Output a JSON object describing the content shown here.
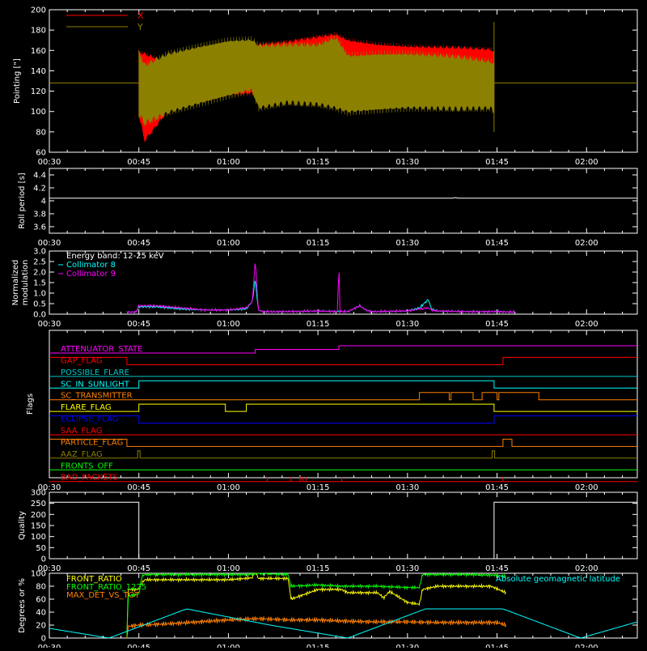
{
  "time_axis": {
    "ticks": [
      "00:30",
      "00:45",
      "01:00",
      "01:15",
      "01:30",
      "01:45",
      "02:00"
    ],
    "tick_minutes": [
      30,
      45,
      60,
      75,
      90,
      105,
      120
    ],
    "range_minutes": [
      30,
      128.5
    ]
  },
  "colors": {
    "background": "#000000",
    "axes": "#ffffff",
    "red": "#ff0000",
    "olive": "#8c8000",
    "cyan": "#00ffff",
    "magenta": "#ff00ff",
    "yellow": "#ffff00",
    "green": "#00ff00",
    "orange": "#ff8000",
    "blue": "#0000ff",
    "white": "#ffffff"
  },
  "chart_data": [
    {
      "id": "pointing",
      "type": "line",
      "ylabel": "Pointing [\"]",
      "ylim": [
        60,
        200
      ],
      "yticks": [
        60,
        80,
        100,
        120,
        140,
        160,
        180,
        200
      ],
      "legend": [
        {
          "name": "X",
          "color": "#ff0000"
        },
        {
          "name": "Y",
          "color": "#8c8000"
        }
      ],
      "baseline": 128,
      "x_envelope": {
        "x": [
          45,
          46,
          50,
          55,
          60,
          64,
          65,
          70,
          75,
          78,
          80,
          85,
          90,
          95,
          100,
          104,
          104.5
        ],
        "upper": [
          160,
          158,
          150,
          157,
          163,
          166,
          168,
          170,
          175,
          178,
          172,
          168,
          166,
          165,
          164,
          163,
          160
        ],
        "lower": [
          95,
          70,
          100,
          108,
          114,
          116,
          114,
          108,
          106,
          108,
          112,
          110,
          108,
          106,
          104,
          104,
          102
        ]
      },
      "y_envelope": {
        "x": [
          45,
          46,
          50,
          55,
          60,
          64,
          65,
          70,
          75,
          78,
          80,
          85,
          90,
          95,
          100,
          104,
          104.5
        ],
        "upper": [
          160,
          148,
          160,
          167,
          173,
          174,
          168,
          168,
          168,
          176,
          158,
          160,
          160,
          158,
          155,
          152,
          150
        ],
        "lower": [
          95,
          86,
          96,
          104,
          112,
          118,
          100,
          106,
          104,
          100,
          96,
          98,
          100,
          100,
          100,
          100,
          96
        ]
      }
    },
    {
      "id": "roll",
      "type": "line",
      "ylabel": "Roll period [s]",
      "ylim": [
        3.5,
        4.5
      ],
      "yticks": [
        3.6,
        3.8,
        4.0,
        4.2,
        4.4
      ],
      "series": [
        {
          "color": "#ffffff",
          "x": [
            30,
            97.5,
            98,
            98.5,
            128.5
          ],
          "y": [
            4.04,
            4.04,
            4.05,
            4.04,
            4.04
          ]
        }
      ]
    },
    {
      "id": "modulation",
      "type": "line",
      "ylabel_lines": [
        "Normalized",
        "modulation"
      ],
      "ylim": [
        0,
        3
      ],
      "yticks": [
        "0.0",
        "0.5",
        "1.0",
        "1.5",
        "2.0",
        "2.5",
        "3.0"
      ],
      "legend": [
        {
          "name": "Energy band: 12-25 keV",
          "color": "#ffffff"
        },
        {
          "name": "Collimator 8",
          "color": "#00ffff"
        },
        {
          "name": "Collimator 9",
          "color": "#ff00ff"
        }
      ],
      "series": [
        {
          "name": "Collimator 8",
          "color": "#00ffff",
          "x": [
            43,
            44.5,
            45,
            48,
            52,
            56,
            60,
            63,
            64,
            64.5,
            65,
            65.5,
            66,
            70,
            75,
            79.5,
            80,
            82,
            83,
            84,
            90,
            92,
            93.5,
            94,
            95,
            100,
            105,
            108
          ],
          "y": [
            0.1,
            0.1,
            0.35,
            0.35,
            0.25,
            0.2,
            0.2,
            0.25,
            0.6,
            1.7,
            0.2,
            0.15,
            0.12,
            0.12,
            0.15,
            0.12,
            0.12,
            0.4,
            0.2,
            0.12,
            0.15,
            0.3,
            0.7,
            0.25,
            0.15,
            0.12,
            0.12,
            0.1
          ]
        },
        {
          "name": "Collimator 9",
          "color": "#ff00ff",
          "x": [
            43,
            44.5,
            45,
            48,
            52,
            56,
            60,
            63,
            64,
            64.5,
            65,
            65.5,
            66,
            70,
            75,
            78.3,
            78.5,
            78.7,
            79.5,
            80,
            82,
            83,
            84,
            90,
            92,
            93.5,
            94,
            95,
            100,
            105,
            108
          ],
          "y": [
            0.1,
            0.1,
            0.4,
            0.4,
            0.3,
            0.2,
            0.2,
            0.3,
            0.6,
            2.6,
            0.2,
            0.15,
            0.12,
            0.12,
            0.15,
            0.12,
            2.6,
            0.12,
            0.12,
            0.12,
            0.4,
            0.2,
            0.12,
            0.15,
            0.25,
            0.3,
            0.2,
            0.15,
            0.12,
            0.12,
            0.1
          ]
        }
      ]
    },
    {
      "id": "flags",
      "type": "line",
      "ylabel": "Flags",
      "flags": [
        {
          "name": "ATTENUATOR_STATE",
          "color": "#ff00ff",
          "x": [
            30,
            64.5,
            64.5,
            78.5,
            78.5,
            128.5
          ],
          "s": [
            0,
            0,
            0.5,
            0.5,
            1,
            1
          ]
        },
        {
          "name": "GAP_FLAG",
          "color": "#ff0000",
          "x": [
            30,
            43,
            43,
            106,
            106,
            128.5
          ],
          "s": [
            1,
            1,
            0,
            0,
            1,
            1
          ]
        },
        {
          "name": "POSSIBLE_FLARE",
          "color": "#00c8c8",
          "x": [
            30,
            128.5
          ],
          "s": [
            0,
            0
          ]
        },
        {
          "name": "SC_IN_SUNLIGHT",
          "color": "#00ffff",
          "x": [
            30,
            45,
            45,
            104.5,
            104.5,
            128.5
          ],
          "s": [
            0,
            0,
            1,
            1,
            0,
            0
          ]
        },
        {
          "name": "SC_TRANSMITTER",
          "color": "#ff8000",
          "x": [
            30,
            92,
            92,
            97,
            97,
            97.3,
            97.3,
            101,
            101,
            102.5,
            102.5,
            105,
            105,
            105.3,
            105.3,
            112,
            112,
            128.5
          ],
          "s": [
            0,
            0,
            1,
            1,
            0,
            0,
            1,
            1,
            0,
            0,
            1,
            1,
            0,
            0,
            1,
            1,
            0,
            0
          ]
        },
        {
          "name": "FLARE_FLAG",
          "color": "#ffff00",
          "x": [
            30,
            45,
            45,
            59.5,
            59.5,
            63,
            63,
            104.5,
            104.5,
            128.5
          ],
          "s": [
            0,
            0,
            1,
            1,
            0,
            0,
            1,
            1,
            0,
            0
          ]
        },
        {
          "name": "ECLIPSE_FLAG",
          "color": "#0000ff",
          "x": [
            30,
            45,
            45,
            104.5,
            104.5,
            128.5
          ],
          "s": [
            1,
            1,
            0,
            0,
            1,
            1
          ]
        },
        {
          "name": "SAA_FLAG",
          "color": "#ff0000",
          "x": [
            30,
            128.5
          ],
          "s": [
            0,
            0
          ]
        },
        {
          "name": "PARTICLE_FLAG",
          "color": "#ff8000",
          "x": [
            30,
            43,
            43,
            106,
            106,
            107.5,
            107.5,
            108,
            108,
            128.5
          ],
          "s": [
            1,
            1,
            0,
            0,
            1,
            1,
            0,
            0,
            0,
            0
          ]
        },
        {
          "name": "AAZ_FLAG",
          "color": "#8c8000",
          "x": [
            30,
            44.8,
            44.8,
            45.2,
            45.2,
            104.2,
            104.2,
            104.6,
            104.6,
            128.5
          ],
          "s": [
            0,
            0,
            1,
            1,
            0,
            0,
            1,
            1,
            0,
            0
          ]
        },
        {
          "name": "FRONTS_OFF",
          "color": "#00ff00",
          "x": [
            30,
            128.5
          ],
          "s": [
            0,
            0
          ]
        },
        {
          "name": "BAD_PACKETS",
          "color": "#ff0000",
          "x": [
            30,
            128.5
          ],
          "s": [
            0,
            0
          ],
          "spikes": [
            66.5,
            70.5,
            72,
            72.5,
            73,
            79,
            106
          ]
        }
      ]
    },
    {
      "id": "quality",
      "type": "line",
      "ylabel": "Quality",
      "ylim": [
        0,
        300
      ],
      "yticks": [
        0,
        50,
        100,
        150,
        200,
        250,
        300
      ],
      "series": [
        {
          "color": "#ffffff",
          "x": [
            30,
            45,
            45,
            104.5,
            104.5,
            128.5
          ],
          "y": [
            255,
            255,
            0,
            0,
            255,
            255
          ]
        }
      ]
    },
    {
      "id": "ratios",
      "type": "line",
      "ylabel": "Degrees or %",
      "ylim": [
        0,
        100
      ],
      "yticks": [
        0,
        20,
        40,
        60,
        80,
        100
      ],
      "legend": [
        {
          "name": "FRONT_RATIO",
          "color": "#ffff00"
        },
        {
          "name": "FRONT_RATIO_1225",
          "color": "#00ff00"
        },
        {
          "name": "MAX_DET_VS_TOT",
          "color": "#ff8000"
        }
      ],
      "right_legend": {
        "name": "Absolute geomagnetic latitude",
        "color": "#00ffff"
      },
      "series": [
        {
          "name": "FRONT_RATIO",
          "color": "#ffff00",
          "x": [
            43,
            43.2,
            45,
            45.5,
            46,
            50,
            55,
            60,
            64,
            64.5,
            65,
            70,
            70.5,
            75,
            79,
            80,
            85,
            86,
            87,
            90,
            92,
            92.5,
            95,
            100,
            104,
            106.5,
            106.6
          ],
          "y": [
            0,
            75,
            75,
            85,
            90,
            90,
            90,
            90,
            93,
            105,
            92,
            92,
            60,
            75,
            75,
            70,
            70,
            62,
            72,
            55,
            52,
            75,
            80,
            80,
            80,
            70,
            0
          ]
        },
        {
          "name": "FRONT_RATIO_1225",
          "color": "#00ff00",
          "x": [
            43,
            43.2,
            45,
            45.5,
            46,
            50,
            55,
            60,
            64,
            64.5,
            65,
            70,
            70.5,
            75,
            79,
            80,
            85,
            90,
            92,
            92.5,
            95,
            100,
            105,
            106.5,
            106.6
          ],
          "y": [
            0,
            65,
            68,
            95,
            98,
            98,
            98,
            98,
            98,
            100,
            100,
            98,
            80,
            82,
            80,
            80,
            80,
            78,
            78,
            98,
            98,
            98,
            97,
            95,
            0
          ]
        },
        {
          "name": "MAX_DET_VS_TOT",
          "color": "#ff8000",
          "x": [
            43,
            43.2,
            45,
            50,
            55,
            60,
            65,
            70,
            75,
            80,
            85,
            90,
            95,
            100,
            105,
            106.5,
            106.6
          ],
          "y": [
            0,
            18,
            20,
            22,
            25,
            28,
            30,
            28,
            28,
            26,
            25,
            25,
            24,
            24,
            24,
            20,
            0
          ]
        },
        {
          "name": "Absolute geomagnetic latitude",
          "color": "#00ffff",
          "x": [
            30,
            40,
            53,
            67,
            80,
            93,
            106,
            119,
            128.5
          ],
          "y": [
            15,
            0,
            45,
            20,
            0,
            45,
            45,
            0,
            25
          ]
        }
      ]
    }
  ]
}
